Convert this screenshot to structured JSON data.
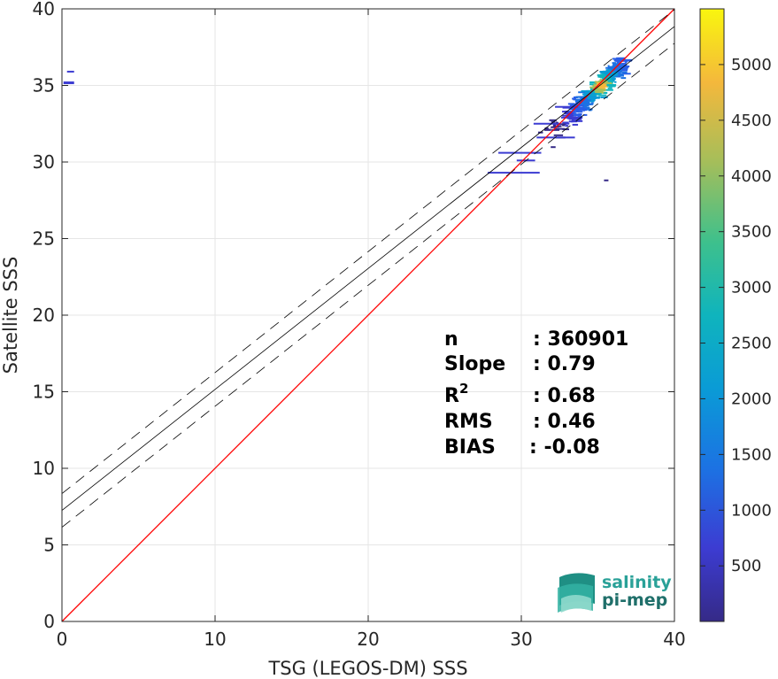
{
  "chart_data": {
    "type": "heatmap",
    "xlabel": "TSG (LEGOS-DM) SSS",
    "ylabel": "Satellite SSS",
    "xlim": [
      0,
      40
    ],
    "ylim": [
      0,
      40
    ],
    "xticks": [
      0,
      10,
      20,
      30,
      40
    ],
    "yticks": [
      0,
      5,
      10,
      15,
      20,
      25,
      30,
      35,
      40
    ],
    "grid": true,
    "identity_line": {
      "color": "#ff0000",
      "from": [
        0,
        0
      ],
      "to": [
        40,
        40
      ]
    },
    "regression_line": {
      "slope": 0.79,
      "intercept": 7.25,
      "color": "#000000"
    },
    "regression_bounds": {
      "offset": 1.1,
      "style": "dashed",
      "color": "#000000"
    },
    "density": {
      "main_cluster": {
        "x_center": 35.2,
        "y_center": 35.0,
        "x_range": [
          27.5,
          37
        ],
        "y_range": [
          28.8,
          36.8
        ]
      },
      "outlier_cluster": {
        "x": [
          0.1,
          0.7
        ],
        "y": [
          35.2,
          35.9
        ]
      }
    },
    "colorbar": {
      "min": 1,
      "max": 5500,
      "ticks": [
        500,
        1000,
        1500,
        2000,
        2500,
        3000,
        3500,
        4000,
        4500,
        5000
      ],
      "colormap": "parula"
    },
    "stats": [
      {
        "label": "n",
        "sep": ": ",
        "value": "360901"
      },
      {
        "label": "Slope",
        "sep": ": ",
        "value": "0.79"
      },
      {
        "label": "R",
        "sup": "2",
        "sep": ": ",
        "value": "0.68"
      },
      {
        "label": "RMS",
        "sep": ": ",
        "value": "0.46"
      },
      {
        "label": "BIAS",
        "sep": ": ",
        "value": "-0.08"
      }
    ]
  },
  "logo": {
    "line1": "salinity",
    "line2": "pi-mep"
  },
  "colors": {
    "logo_teal": "#2aa198",
    "logo_dark": "#1f6f6a"
  }
}
